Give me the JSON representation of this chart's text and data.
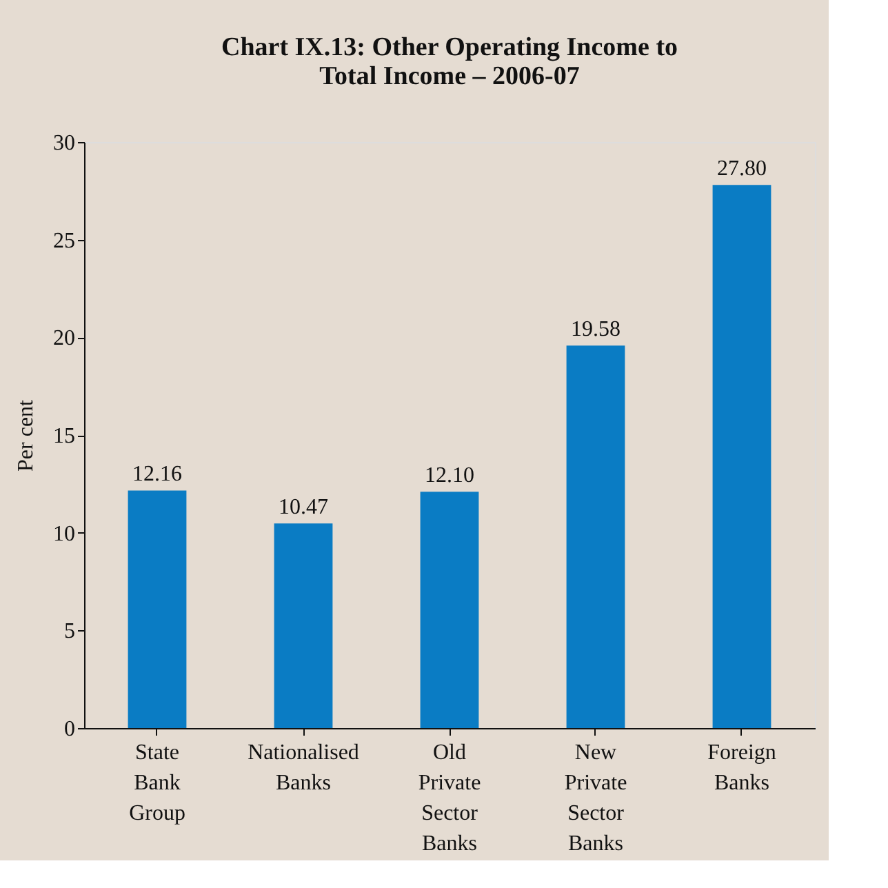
{
  "chart_data": {
    "type": "bar",
    "title": "Chart IX.13: Other Operating Income to Total Income – 2006-07",
    "ylabel": "Per cent",
    "categories": [
      "State Bank Group",
      "Nationalised Banks",
      "Old Private Sector Banks",
      "New Private Sector Banks",
      "Foreign Banks"
    ],
    "values": [
      12.16,
      10.47,
      12.1,
      19.58,
      27.8
    ],
    "value_labels": [
      "12.16",
      "10.47",
      "12.10",
      "19.58",
      "27.80"
    ],
    "color": "#0a7cc4",
    "ylim": [
      0,
      30
    ],
    "yticks": [
      0,
      5,
      10,
      15,
      20,
      25,
      30
    ],
    "grid": false
  }
}
